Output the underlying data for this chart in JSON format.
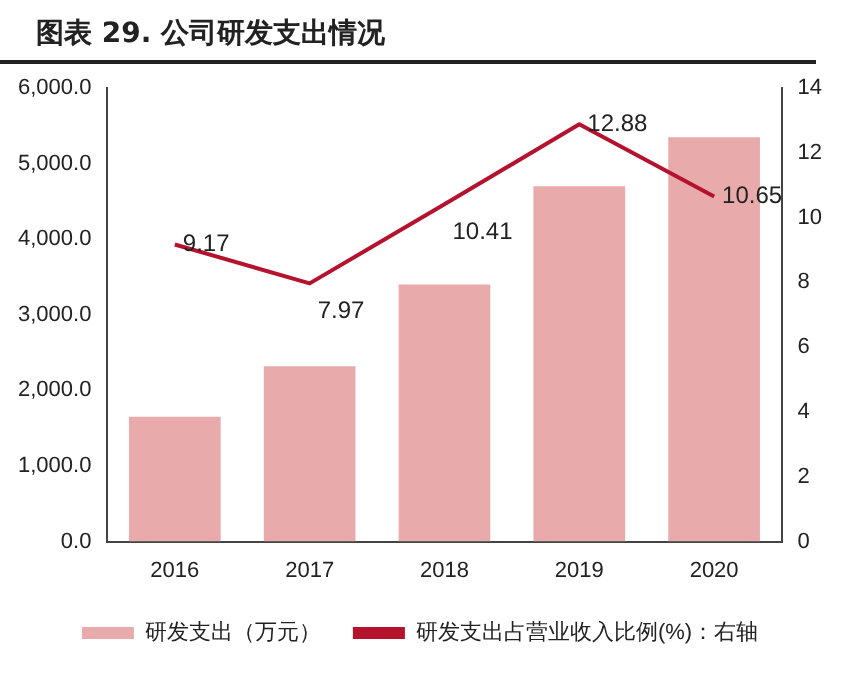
{
  "chart_data": {
    "type": "bar",
    "title": "图表 29. 公司研发支出情况",
    "categories": [
      "2016",
      "2017",
      "2018",
      "2019",
      "2020"
    ],
    "series": [
      {
        "name": "研发支出（万元）",
        "color": "#e8aaaa",
        "values": [
          1650,
          2320,
          3400,
          4700,
          5350
        ]
      },
      {
        "name": "研发支出占营业收入比例(%)：右轴",
        "type": "line",
        "axis": "y2",
        "color": "#b5122e",
        "values": [
          9.17,
          7.97,
          10.41,
          12.88,
          10.65
        ],
        "value_labels": [
          "9.17",
          "7.97",
          "10.41",
          "12.88",
          "10.65"
        ]
      }
    ],
    "ylim": [
      0,
      6000
    ],
    "yticks": [
      {
        "value": 0,
        "label": "0.0"
      },
      {
        "value": 1000,
        "label": "1,000.0"
      },
      {
        "value": 2000,
        "label": "2,000.0"
      },
      {
        "value": 3000,
        "label": "3,000.0"
      },
      {
        "value": 4000,
        "label": "4,000.0"
      },
      {
        "value": 5000,
        "label": "5,000.0"
      },
      {
        "value": 6000,
        "label": "6,000.0"
      }
    ],
    "y2lim": [
      0,
      14
    ],
    "y2ticks": [
      0,
      2,
      4,
      6,
      8,
      10,
      12,
      14
    ],
    "grid": false,
    "legend": "bottom",
    "marker": "none"
  }
}
